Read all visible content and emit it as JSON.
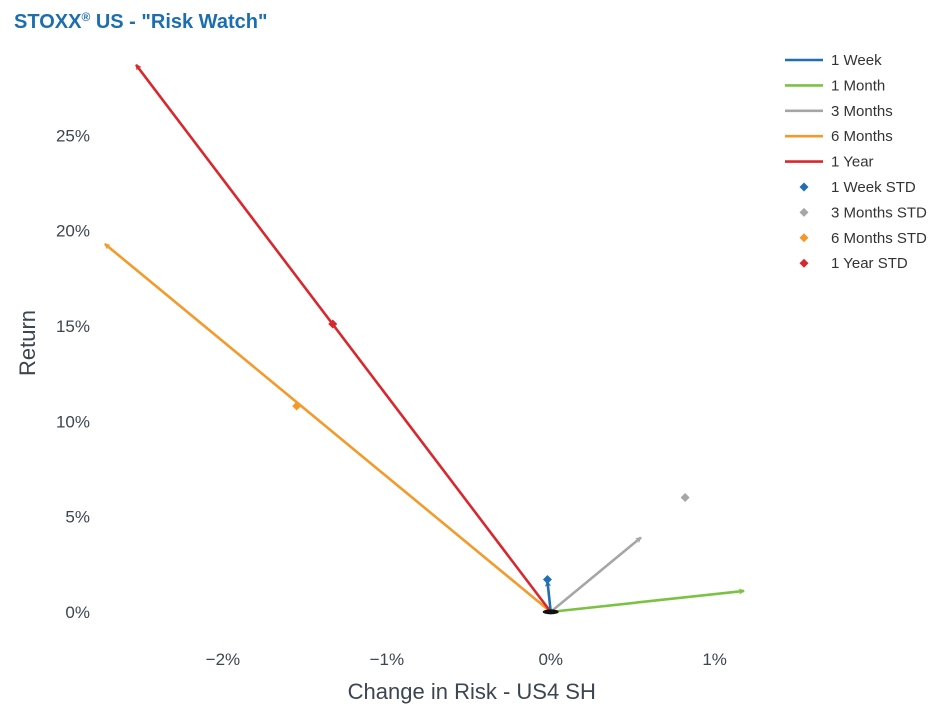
{
  "title": {
    "main": "STOXX",
    "reg": "®",
    "rest": " US - \"Risk Watch\""
  },
  "chart_data": {
    "type": "line",
    "xlabel": "Change in Risk - US4 SH",
    "ylabel": "Return",
    "xlim": [
      -0.0275,
      0.0135
    ],
    "ylim": [
      -0.02,
      0.3
    ],
    "x_ticks": [
      {
        "v": -0.02,
        "label": "−2%"
      },
      {
        "v": -0.01,
        "label": "−1%"
      },
      {
        "v": 0.0,
        "label": "0%"
      },
      {
        "v": 0.01,
        "label": "1%"
      }
    ],
    "y_ticks": [
      {
        "v": 0.0,
        "label": "0%"
      },
      {
        "v": 0.05,
        "label": "5%"
      },
      {
        "v": 0.1,
        "label": "10%"
      },
      {
        "v": 0.15,
        "label": "15%"
      },
      {
        "v": 0.2,
        "label": "20%"
      },
      {
        "v": 0.25,
        "label": "25%"
      }
    ],
    "grid": false,
    "legend_position": "top-right",
    "origin": {
      "x": 0.0,
      "y": 0.0
    },
    "series": [
      {
        "name": "1 Week",
        "kind": "arrow",
        "color": "#1f6fb2",
        "x": [
          0.0,
          -0.0002
        ],
        "y": [
          0.0,
          0.016
        ]
      },
      {
        "name": "1 Month",
        "kind": "arrow",
        "color": "#7cc242",
        "x": [
          0.0,
          0.0118
        ],
        "y": [
          0.0,
          0.011
        ]
      },
      {
        "name": "3 Months",
        "kind": "arrow",
        "color": "#a6a6a6",
        "x": [
          0.0,
          0.0055
        ],
        "y": [
          0.0,
          0.039
        ]
      },
      {
        "name": "6 Months",
        "kind": "arrow",
        "color": "#f39a2b",
        "x": [
          0.0,
          -0.0272
        ],
        "y": [
          0.0,
          0.193
        ]
      },
      {
        "name": "1 Year",
        "kind": "arrow",
        "color": "#d8282e",
        "x": [
          0.0,
          -0.0253
        ],
        "y": [
          0.0,
          0.287
        ]
      },
      {
        "name": "1 Week STD",
        "kind": "marker",
        "color": "#1f6fb2",
        "x": [
          -0.0002
        ],
        "y": [
          0.017
        ]
      },
      {
        "name": "3 Months STD",
        "kind": "marker",
        "color": "#a6a6a6",
        "x": [
          0.0082
        ],
        "y": [
          0.06
        ]
      },
      {
        "name": "6 Months STD",
        "kind": "marker",
        "color": "#f39a2b",
        "x": [
          -0.0155
        ],
        "y": [
          0.108
        ]
      },
      {
        "name": "1 Year STD",
        "kind": "marker",
        "color": "#d8282e",
        "x": [
          -0.0133
        ],
        "y": [
          0.151
        ]
      }
    ]
  }
}
